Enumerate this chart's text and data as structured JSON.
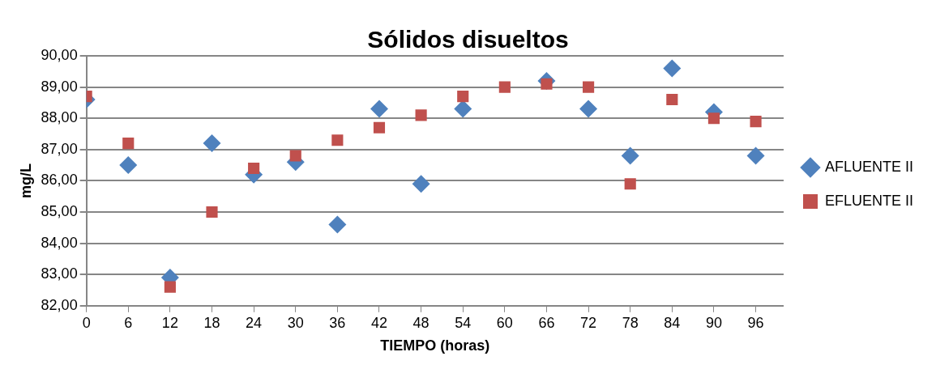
{
  "chart_data": {
    "type": "scatter",
    "title": "Sólidos disueltos",
    "xlabel": "TIEMPO (horas)",
    "ylabel": "mg/L",
    "x": [
      0,
      6,
      12,
      18,
      24,
      30,
      36,
      42,
      48,
      54,
      60,
      66,
      72,
      78,
      84,
      90,
      96
    ],
    "series": [
      {
        "name": "AFLUENTE II",
        "color": "#4f81bd",
        "marker": "diamond",
        "values": [
          88.6,
          86.5,
          82.9,
          87.2,
          86.2,
          86.6,
          84.6,
          88.3,
          85.9,
          88.3,
          null,
          89.2,
          88.3,
          86.8,
          89.6,
          88.2,
          86.8
        ]
      },
      {
        "name": "EFLUENTE II",
        "color": "#c0504d",
        "marker": "square",
        "values": [
          88.7,
          87.2,
          82.6,
          85.0,
          86.4,
          86.8,
          87.3,
          87.7,
          88.1,
          88.7,
          89.0,
          89.1,
          89.0,
          85.9,
          88.6,
          88.0,
          87.9
        ]
      }
    ],
    "xlim": [
      0,
      100
    ],
    "xticks": [
      0,
      6,
      12,
      18,
      24,
      30,
      36,
      42,
      48,
      54,
      60,
      66,
      72,
      78,
      84,
      90,
      96
    ],
    "ylim": [
      82,
      90
    ],
    "yticks": [
      {
        "value": 82,
        "label": "82,00"
      },
      {
        "value": 83,
        "label": "83,00"
      },
      {
        "value": 84,
        "label": "84,00"
      },
      {
        "value": 85,
        "label": "85,00"
      },
      {
        "value": 86,
        "label": "86,00"
      },
      {
        "value": 87,
        "label": "87,00"
      },
      {
        "value": 88,
        "label": "88,00"
      },
      {
        "value": 89,
        "label": "89,00"
      },
      {
        "value": 90,
        "label": "90,00"
      }
    ],
    "grid": "y",
    "legend": "right"
  }
}
